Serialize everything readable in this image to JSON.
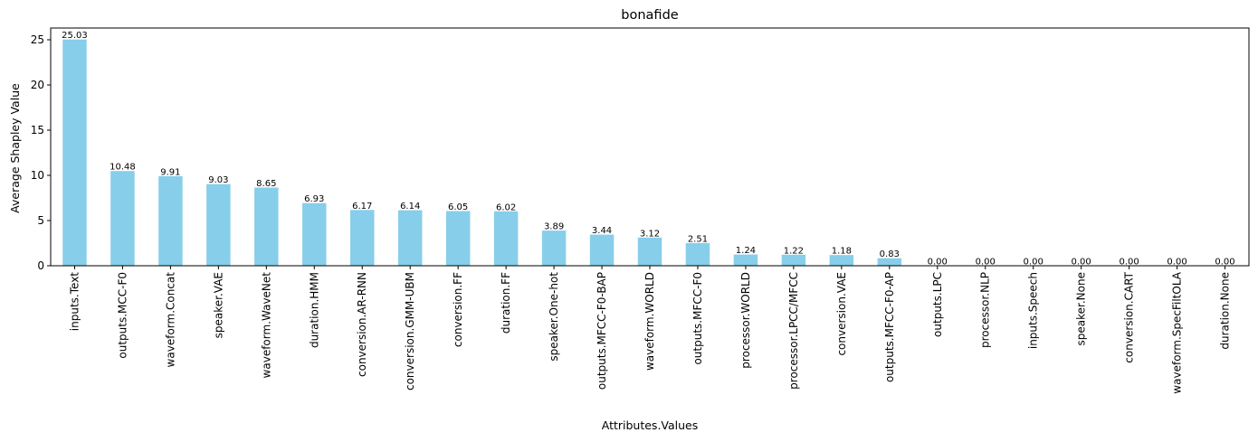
{
  "chart_data": {
    "type": "bar",
    "title": "bonafide",
    "xlabel": "Attributes.Values",
    "ylabel": "Average Shapley Value",
    "categories": [
      "inputs.Text",
      "outputs.MCC-F0",
      "waveform.Concat",
      "speaker.VAE",
      "waveform.WaveNet",
      "duration.HMM",
      "conversion.AR-RNN",
      "conversion.GMM-UBM",
      "conversion.FF",
      "duration.FF",
      "speaker.One-hot",
      "outputs.MFCC-F0-BAP",
      "waveform.WORLD",
      "outputs.MFCC-F0",
      "processor.WORLD",
      "processor.LPCC/MFCC",
      "conversion.VAE",
      "outputs.MFCC-F0-AP",
      "outputs.LPC",
      "processor.NLP",
      "inputs.Speech",
      "speaker.None",
      "conversion.CART",
      "waveform.SpecFiltOLA",
      "duration.None"
    ],
    "values": [
      25.03,
      10.48,
      9.91,
      9.03,
      8.65,
      6.93,
      6.17,
      6.14,
      6.05,
      6.02,
      3.89,
      3.44,
      3.12,
      2.51,
      1.24,
      1.22,
      1.18,
      0.83,
      0.0,
      0.0,
      0.0,
      0.0,
      0.0,
      0.0,
      0.0
    ],
    "data_labels": [
      "25.03",
      "10.48",
      "9.91",
      "9.03",
      "8.65",
      "6.93",
      "6.17",
      "6.14",
      "6.05",
      "6.02",
      "3.89",
      "3.44",
      "3.12",
      "2.51",
      "1.24",
      "1.22",
      "1.18",
      "0.83",
      "0.00",
      "0.00",
      "0.00",
      "0.00",
      "0.00",
      "0.00",
      "0.00"
    ],
    "ylim": [
      0,
      26.3
    ],
    "yticks": [
      0,
      5,
      10,
      15,
      20,
      25
    ],
    "bar_color": "#87CEEB",
    "grid": false,
    "legend": "none"
  }
}
